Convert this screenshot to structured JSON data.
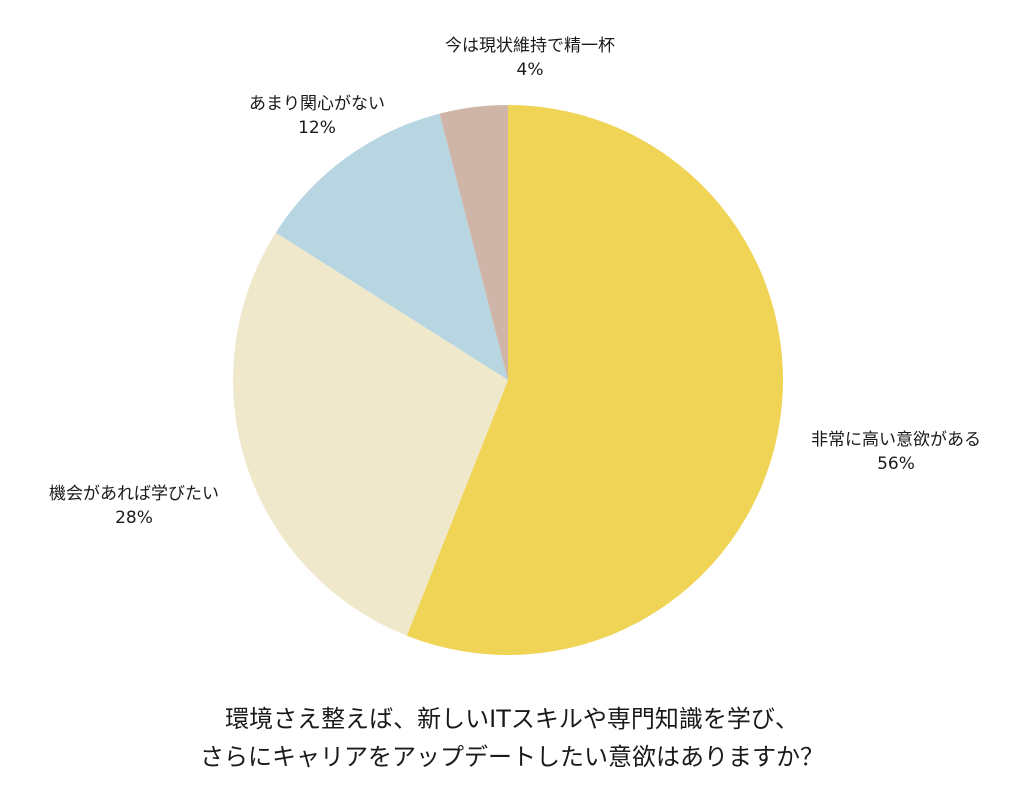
{
  "chart_data": {
    "type": "pie",
    "title": "環境さえ整えば、新しいITスキルや専門知識を学び、さらにキャリアをアップデートしたい意欲はありますか？",
    "title_lines": [
      "環境さえ整えば、新しいITスキルや専門知識を学び、",
      "さらにキャリアをアップデートしたい意欲はありますか？"
    ],
    "categories": [
      "非常に高い意欲がある",
      "機会があれば学びたい",
      "あまり関心がない",
      "今は現状維持で精一杯"
    ],
    "values": [
      56,
      28,
      12,
      4
    ],
    "unit": "%",
    "colors": [
      "#EFD456",
      "#EFE8CB",
      "#B8D5E2",
      "#CFB5A7"
    ],
    "start_angle": "top (12 o'clock)",
    "direction": "clockwise",
    "labels": [
      {
        "name": "非常に高い意欲がある",
        "pct": "56%"
      },
      {
        "name": "機会があれば学びたい",
        "pct": "28%"
      },
      {
        "name": "あまり関心がない",
        "pct": "12%"
      },
      {
        "name": "今は現状維持で精一杯",
        "pct": "4%"
      }
    ],
    "legend": "none (labels outside slices)"
  }
}
